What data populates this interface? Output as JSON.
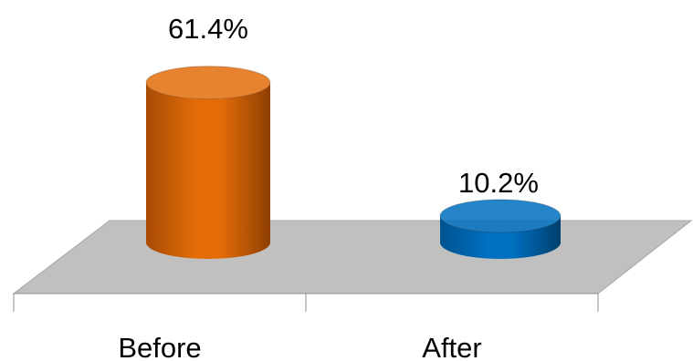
{
  "chart_data": {
    "type": "bar",
    "style": "3d-cylinder",
    "categories": [
      "Before",
      "After"
    ],
    "values": [
      61.4,
      10.2
    ],
    "data_labels": [
      "61.4%",
      "10.2%"
    ],
    "title": "",
    "xlabel": "",
    "ylabel": "",
    "ylim": [
      0,
      70
    ],
    "grid": false,
    "legend": "none",
    "colors": {
      "bars": [
        "#E36C09",
        "#0070C0"
      ],
      "floor": "#C0C0C0"
    }
  }
}
